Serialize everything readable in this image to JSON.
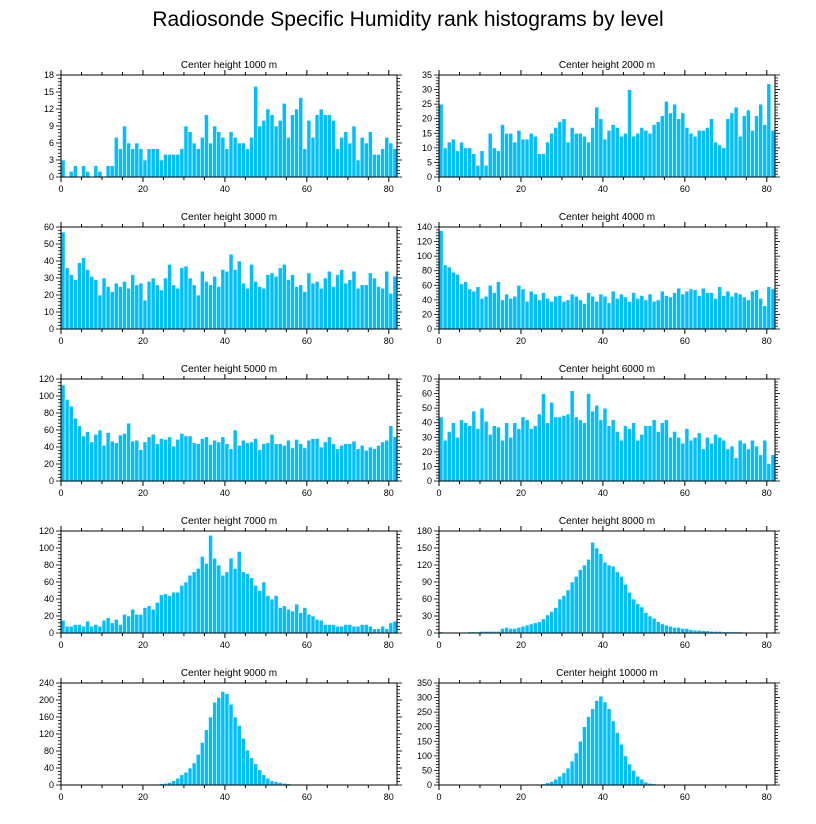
{
  "page_title": "Radiosonde Specific Humidity rank histograms by level",
  "style": {
    "bar_color": "#00bfff",
    "bar_edge": "#ffffff",
    "axis_color": "#000000"
  },
  "chart_data": [
    {
      "type": "bar",
      "title": "Center height 1000 m",
      "xlim": [
        0,
        82
      ],
      "xticks": [
        0,
        20,
        40,
        60,
        80
      ],
      "ylim": [
        0,
        18
      ],
      "yticks": [
        0,
        3,
        6,
        9,
        12,
        15,
        18
      ],
      "x_start": 0,
      "values": [
        3,
        0,
        1,
        2,
        0,
        2,
        1,
        0,
        2,
        1,
        0,
        2,
        2,
        7,
        5,
        9,
        6,
        5,
        6,
        5,
        3,
        5,
        5,
        5,
        3,
        4,
        4,
        4,
        4,
        5,
        9,
        8,
        6,
        5,
        7,
        11,
        6,
        9,
        8,
        7,
        5,
        8,
        7,
        6,
        6,
        5,
        7,
        16,
        9,
        10,
        12,
        11,
        9,
        10,
        13,
        7,
        11,
        12,
        14,
        5,
        10,
        7,
        11,
        12,
        11,
        11,
        10,
        5,
        7,
        8,
        6,
        9,
        3,
        7,
        6,
        8,
        4,
        4,
        5,
        7,
        6,
        5
      ]
    },
    {
      "type": "bar",
      "title": "Center height 2000 m",
      "xlim": [
        0,
        82
      ],
      "xticks": [
        0,
        20,
        40,
        60,
        80
      ],
      "ylim": [
        0,
        35
      ],
      "yticks": [
        0,
        5,
        10,
        15,
        20,
        25,
        30,
        35
      ],
      "x_start": 0,
      "values": [
        25,
        10,
        12,
        13,
        9,
        12,
        10,
        10,
        8,
        4,
        9,
        4,
        15,
        10,
        9,
        18,
        15,
        15,
        12,
        16,
        13,
        13,
        15,
        14,
        8,
        8,
        12,
        15,
        17,
        19,
        20,
        12,
        17,
        15,
        15,
        14,
        12,
        17,
        24,
        20,
        13,
        16,
        18,
        17,
        14,
        15,
        30,
        14,
        15,
        17,
        16,
        15,
        18,
        19,
        21,
        26,
        22,
        25,
        20,
        22,
        17,
        15,
        14,
        16,
        16,
        17,
        20,
        12,
        11,
        10,
        20,
        22,
        24,
        14,
        21,
        23,
        16,
        21,
        25,
        18,
        32,
        16
      ]
    },
    {
      "type": "bar",
      "title": "Center height 3000 m",
      "xlim": [
        0,
        82
      ],
      "xticks": [
        0,
        20,
        40,
        60,
        80
      ],
      "ylim": [
        0,
        60
      ],
      "yticks": [
        0,
        10,
        20,
        30,
        40,
        50,
        60
      ],
      "x_start": 0,
      "values": [
        57,
        36,
        32,
        29,
        39,
        42,
        35,
        31,
        29,
        20,
        30,
        25,
        22,
        27,
        25,
        28,
        24,
        32,
        26,
        27,
        17,
        28,
        30,
        26,
        23,
        30,
        38,
        26,
        24,
        36,
        37,
        30,
        26,
        20,
        34,
        28,
        26,
        31,
        25,
        35,
        34,
        44,
        35,
        40,
        27,
        24,
        38,
        28,
        25,
        24,
        32,
        33,
        31,
        36,
        38,
        29,
        32,
        25,
        26,
        22,
        33,
        27,
        28,
        24,
        30,
        34,
        25,
        32,
        35,
        27,
        29,
        34,
        24,
        26,
        26,
        33,
        30,
        25,
        24,
        34,
        21,
        31
      ]
    },
    {
      "type": "bar",
      "title": "Center height 4000 m",
      "xlim": [
        0,
        82
      ],
      "xticks": [
        0,
        20,
        40,
        60,
        80
      ],
      "ylim": [
        0,
        140
      ],
      "yticks": [
        0,
        20,
        40,
        60,
        80,
        100,
        120,
        140
      ],
      "x_start": 0,
      "values": [
        135,
        88,
        85,
        78,
        75,
        62,
        65,
        55,
        52,
        58,
        42,
        45,
        60,
        50,
        65,
        40,
        48,
        42,
        45,
        60,
        55,
        38,
        52,
        48,
        40,
        50,
        42,
        38,
        45,
        46,
        38,
        40,
        48,
        45,
        40,
        35,
        50,
        45,
        38,
        48,
        45,
        36,
        52,
        42,
        48,
        44,
        38,
        50,
        42,
        46,
        40,
        48,
        38,
        40,
        52,
        46,
        44,
        50,
        56,
        48,
        52,
        55,
        54,
        46,
        56,
        50,
        50,
        42,
        58,
        46,
        52,
        45,
        50,
        48,
        44,
        40,
        52,
        54,
        42,
        32,
        58,
        55
      ]
    },
    {
      "type": "bar",
      "title": "Center height 5000 m",
      "xlim": [
        0,
        82
      ],
      "xticks": [
        0,
        20,
        40,
        60,
        80
      ],
      "ylim": [
        0,
        120
      ],
      "yticks": [
        0,
        20,
        40,
        60,
        80,
        100,
        120
      ],
      "x_start": 0,
      "values": [
        113,
        96,
        88,
        74,
        65,
        53,
        58,
        46,
        55,
        60,
        42,
        57,
        47,
        45,
        54,
        56,
        68,
        47,
        48,
        37,
        46,
        52,
        55,
        44,
        50,
        49,
        52,
        41,
        49,
        56,
        53,
        53,
        45,
        44,
        50,
        52,
        43,
        48,
        46,
        52,
        44,
        38,
        60,
        42,
        48,
        45,
        46,
        50,
        37,
        44,
        45,
        55,
        44,
        44,
        42,
        48,
        39,
        49,
        44,
        39,
        48,
        50,
        50,
        40,
        46,
        52,
        44,
        38,
        42,
        44,
        44,
        47,
        38,
        42,
        36,
        40,
        38,
        42,
        46,
        48,
        65,
        52
      ]
    },
    {
      "type": "bar",
      "title": "Center height 6000 m",
      "xlim": [
        0,
        82
      ],
      "xticks": [
        0,
        20,
        40,
        60,
        80
      ],
      "ylim": [
        0,
        70
      ],
      "yticks": [
        0,
        10,
        20,
        30,
        40,
        50,
        60,
        70
      ],
      "x_start": 0,
      "values": [
        44,
        28,
        34,
        40,
        30,
        42,
        40,
        38,
        48,
        36,
        50,
        41,
        32,
        38,
        37,
        28,
        40,
        30,
        40,
        36,
        44,
        42,
        36,
        38,
        46,
        60,
        40,
        54,
        44,
        44,
        45,
        46,
        62,
        44,
        42,
        40,
        60,
        48,
        52,
        42,
        50,
        38,
        42,
        34,
        28,
        38,
        36,
        40,
        28,
        32,
        38,
        38,
        42,
        34,
        40,
        42,
        30,
        34,
        30,
        26,
        36,
        28,
        30,
        33,
        22,
        30,
        26,
        32,
        30,
        28,
        22,
        24,
        16,
        28,
        26,
        22,
        28,
        24,
        18,
        28,
        12,
        18
      ]
    },
    {
      "type": "bar",
      "title": "Center height 7000 m",
      "xlim": [
        0,
        82
      ],
      "xticks": [
        0,
        20,
        40,
        60,
        80
      ],
      "ylim": [
        0,
        120
      ],
      "yticks": [
        0,
        20,
        40,
        60,
        80,
        100,
        120
      ],
      "x_start": 0,
      "values": [
        15,
        8,
        8,
        10,
        10,
        8,
        14,
        8,
        10,
        8,
        15,
        18,
        12,
        16,
        10,
        22,
        20,
        28,
        22,
        22,
        30,
        32,
        28,
        36,
        45,
        46,
        44,
        48,
        48,
        56,
        60,
        68,
        72,
        76,
        90,
        82,
        115,
        88,
        80,
        68,
        72,
        88,
        76,
        96,
        72,
        70,
        65,
        56,
        50,
        60,
        44,
        40,
        44,
        30,
        32,
        28,
        26,
        34,
        24,
        30,
        22,
        20,
        16,
        15,
        10,
        10,
        10,
        8,
        8,
        10,
        10,
        8,
        8,
        10,
        10,
        8,
        5,
        5,
        8,
        5,
        12,
        14
      ]
    },
    {
      "type": "bar",
      "title": "Center height 8000 m",
      "xlim": [
        0,
        82
      ],
      "xticks": [
        0,
        20,
        40,
        60,
        80
      ],
      "ylim": [
        0,
        180
      ],
      "yticks": [
        0,
        30,
        60,
        90,
        120,
        150,
        180
      ],
      "x_start": 0,
      "values": [
        2,
        1,
        1,
        1,
        1,
        1,
        1,
        2,
        2,
        2,
        3,
        3,
        3,
        3,
        3,
        8,
        10,
        8,
        8,
        10,
        12,
        14,
        16,
        18,
        20,
        25,
        32,
        38,
        45,
        60,
        66,
        76,
        90,
        100,
        112,
        120,
        130,
        160,
        150,
        140,
        125,
        120,
        118,
        108,
        100,
        86,
        72,
        60,
        52,
        46,
        36,
        30,
        26,
        20,
        16,
        14,
        12,
        10,
        10,
        8,
        8,
        6,
        5,
        5,
        4,
        4,
        3,
        3,
        3,
        2,
        2,
        2,
        2,
        2,
        1,
        1,
        1,
        1,
        1,
        1,
        1,
        1
      ]
    },
    {
      "type": "bar",
      "title": "Center height 9000 m",
      "xlim": [
        0,
        82
      ],
      "xticks": [
        0,
        20,
        40,
        60,
        80
      ],
      "ylim": [
        0,
        240
      ],
      "yticks": [
        0,
        40,
        80,
        120,
        160,
        200,
        240
      ],
      "x_start": 0,
      "values": [
        0,
        0,
        0,
        0,
        0,
        0,
        0,
        0,
        0,
        0,
        0,
        0,
        0,
        0,
        0,
        0,
        0,
        0,
        0,
        0,
        1,
        1,
        2,
        2,
        3,
        4,
        6,
        10,
        16,
        24,
        30,
        40,
        52,
        72,
        100,
        130,
        160,
        195,
        206,
        220,
        215,
        190,
        160,
        140,
        110,
        82,
        64,
        50,
        36,
        24,
        16,
        10,
        8,
        6,
        4,
        3,
        2,
        2,
        1,
        1,
        1,
        1,
        0,
        0,
        0,
        0,
        0,
        0,
        0,
        0,
        0,
        0,
        0,
        0,
        0,
        0,
        0,
        0,
        0,
        0,
        0,
        0
      ]
    },
    {
      "type": "bar",
      "title": "Center height 10000 m",
      "xlim": [
        0,
        82
      ],
      "xticks": [
        0,
        20,
        40,
        60,
        80
      ],
      "ylim": [
        0,
        350
      ],
      "yticks": [
        0,
        50,
        100,
        150,
        200,
        250,
        300,
        350
      ],
      "x_start": 0,
      "values": [
        0,
        0,
        0,
        0,
        0,
        0,
        0,
        0,
        0,
        0,
        0,
        0,
        0,
        0,
        0,
        0,
        0,
        0,
        0,
        0,
        0,
        0,
        0,
        0,
        2,
        4,
        8,
        12,
        20,
        30,
        42,
        58,
        82,
        110,
        150,
        200,
        235,
        262,
        290,
        305,
        285,
        262,
        220,
        180,
        140,
        100,
        72,
        50,
        30,
        20,
        10,
        6,
        4,
        2,
        1,
        1,
        1,
        0,
        0,
        0,
        0,
        0,
        0,
        0,
        0,
        0,
        0,
        0,
        0,
        0,
        0,
        0,
        0,
        0,
        0,
        0,
        0,
        0,
        0,
        0,
        0,
        0
      ]
    }
  ]
}
